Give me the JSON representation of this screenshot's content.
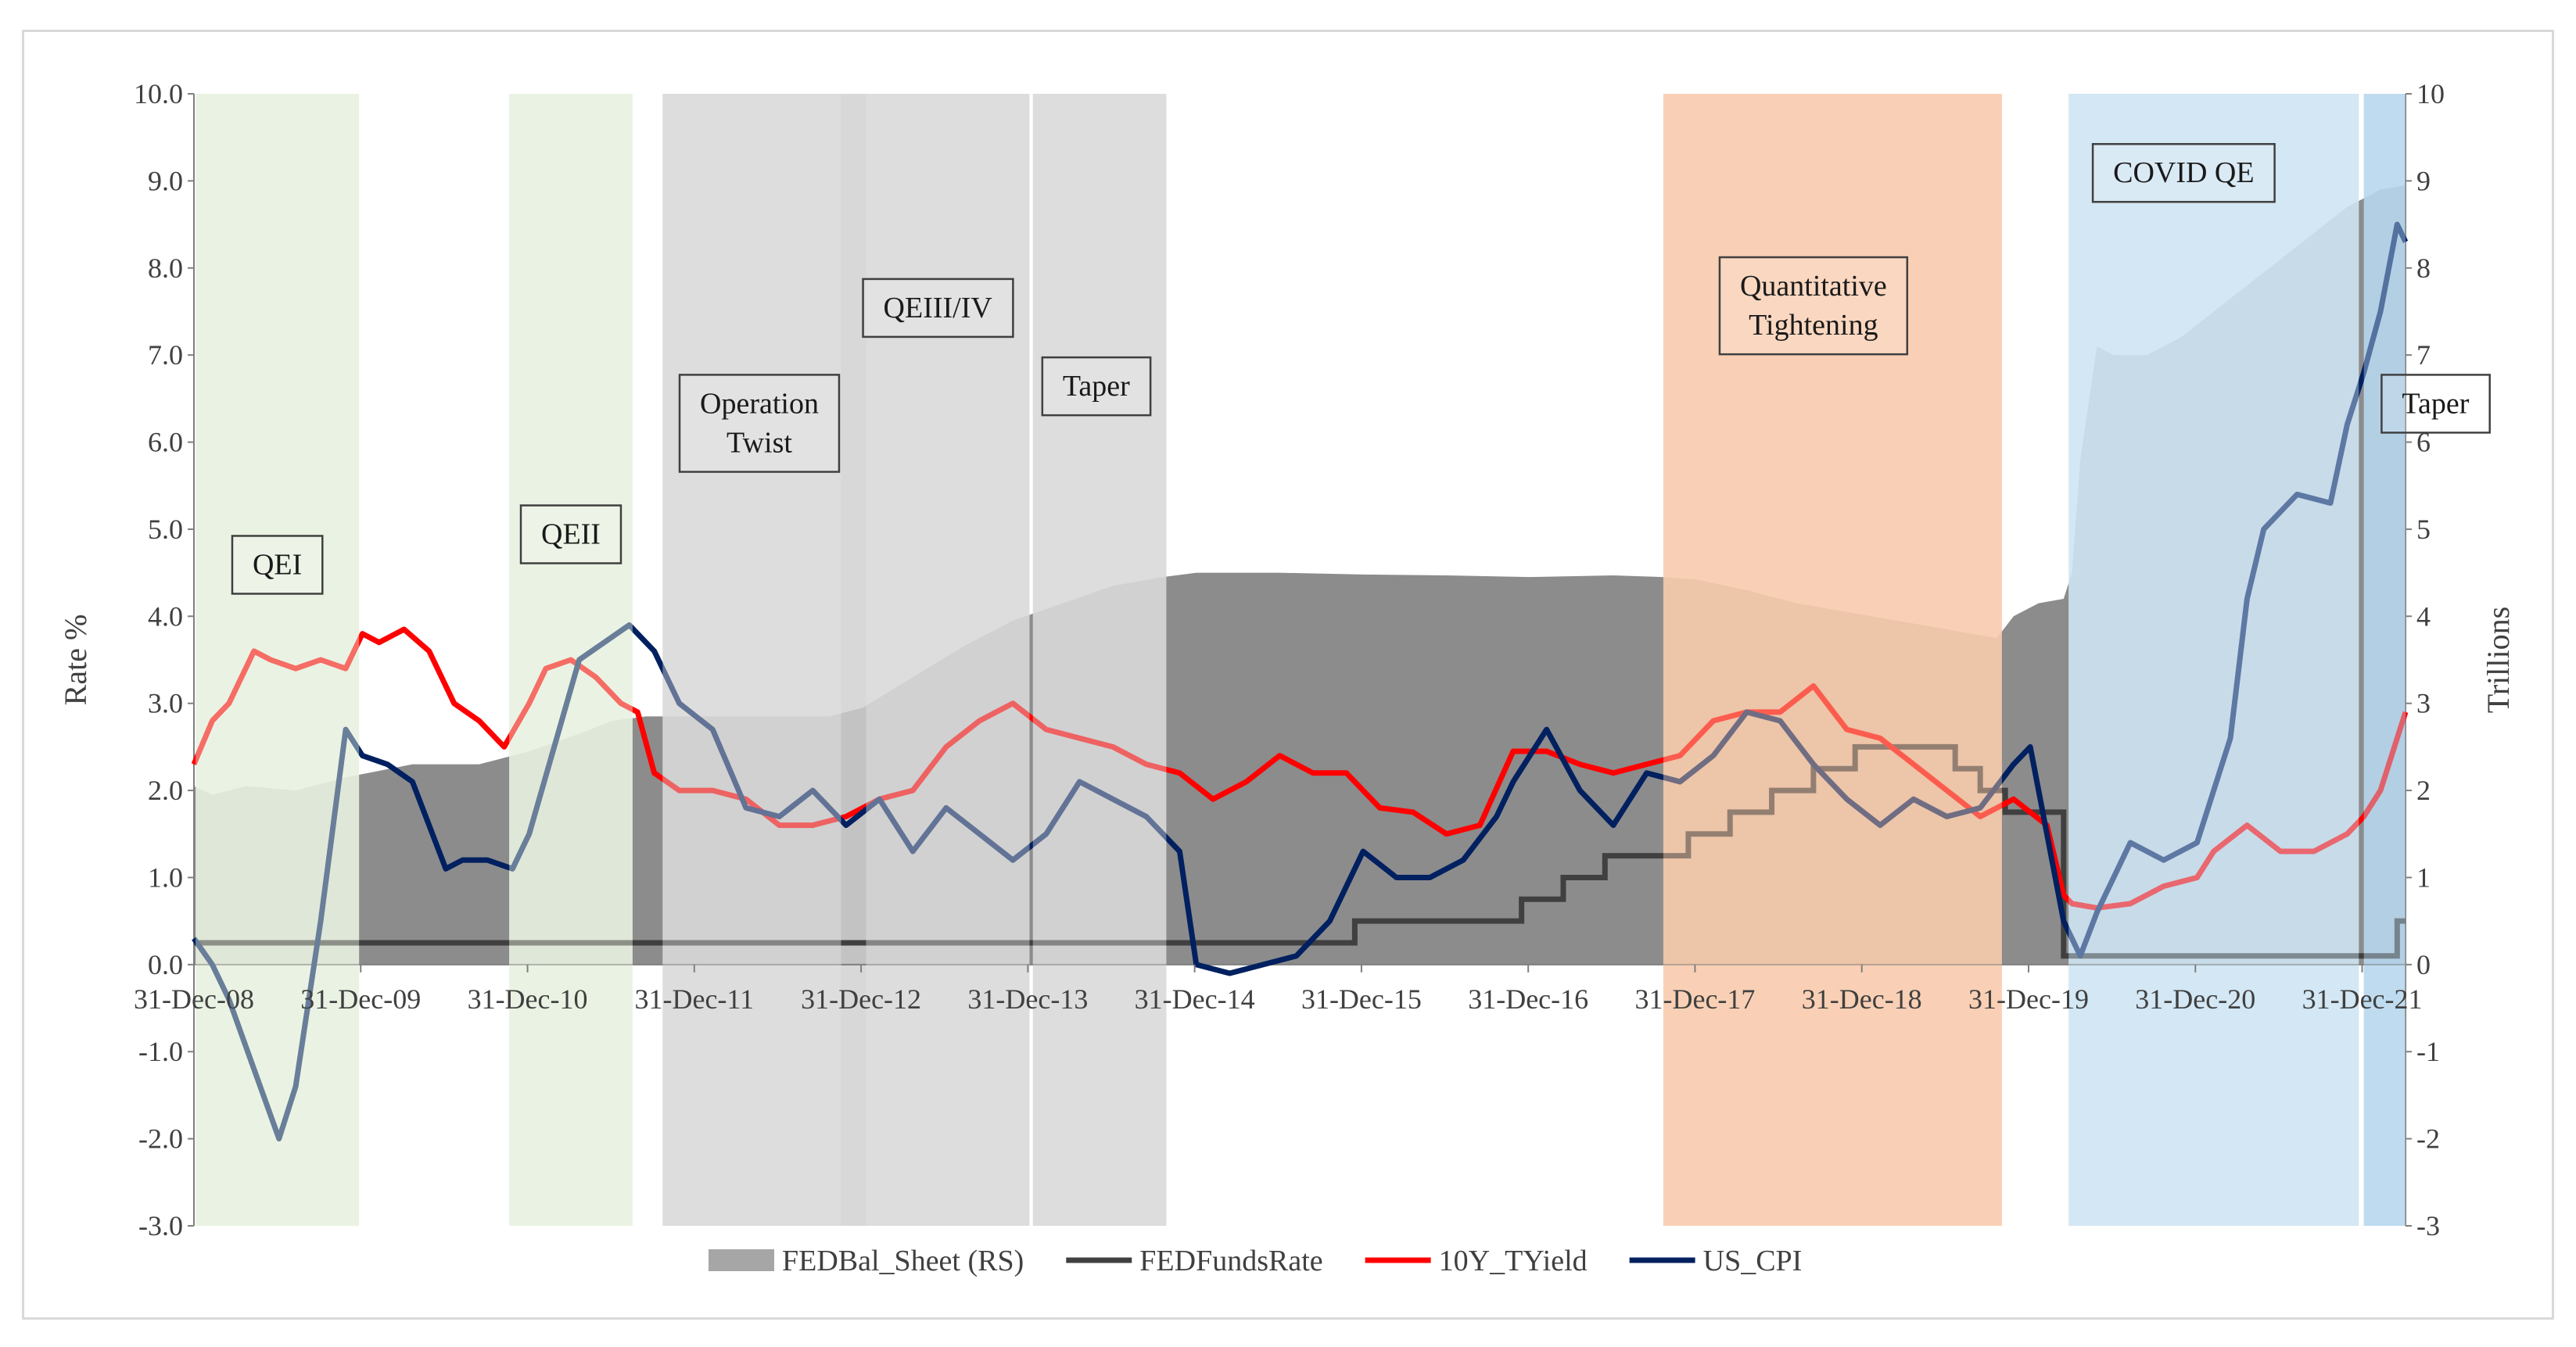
{
  "chart_data": {
    "type": "line",
    "title": "",
    "ylabel_left": "Rate %",
    "ylabel_right": "Trillions",
    "ylim_left": [
      -3,
      10
    ],
    "ylim_right": [
      -3,
      10
    ],
    "x_domain": [
      2008.99,
      2022.25
    ],
    "left_ticks": [
      "10.0",
      "9.0",
      "8.0",
      "7.0",
      "6.0",
      "5.0",
      "4.0",
      "3.0",
      "2.0",
      "1.0",
      "0.0",
      "-1.0",
      "-2.0",
      "-3.0"
    ],
    "right_ticks": [
      "10",
      "9",
      "8",
      "7",
      "6",
      "5",
      "4",
      "3",
      "2",
      "1",
      "0",
      "-1",
      "-2",
      "-3"
    ],
    "x_ticks": [
      {
        "label": "31-Dec-08",
        "x": 2008.99
      },
      {
        "label": "31-Dec-09",
        "x": 2009.99
      },
      {
        "label": "31-Dec-10",
        "x": 2010.99
      },
      {
        "label": "31-Dec-11",
        "x": 2011.99
      },
      {
        "label": "31-Dec-12",
        "x": 2012.99
      },
      {
        "label": "31-Dec-13",
        "x": 2013.99
      },
      {
        "label": "31-Dec-14",
        "x": 2014.99
      },
      {
        "label": "31-Dec-15",
        "x": 2015.99
      },
      {
        "label": "31-Dec-16",
        "x": 2016.99
      },
      {
        "label": "31-Dec-17",
        "x": 2017.99
      },
      {
        "label": "31-Dec-18",
        "x": 2018.99
      },
      {
        "label": "31-Dec-19",
        "x": 2019.99
      },
      {
        "label": "31-Dec-20",
        "x": 2020.99
      },
      {
        "label": "31-Dec-21",
        "x": 2021.99
      }
    ],
    "periods": [
      {
        "label": "QEI",
        "start": 2009.0,
        "end": 2009.98,
        "color": "#e8f2e1"
      },
      {
        "label": "QEII",
        "start": 2010.88,
        "end": 2011.62,
        "color": "#e8f2e1"
      },
      {
        "label": "Operation Twist",
        "start": 2011.8,
        "end": 2012.87,
        "color": "#d9d9d9"
      },
      {
        "label": "QEIII/IV",
        "start": 2012.87,
        "end": 2013.02,
        "color": "#cfcfcf"
      },
      {
        "label": "QEIII/IV",
        "start": 2013.02,
        "end": 2014.0,
        "color": "#d9d9d9"
      },
      {
        "label": "Taper",
        "start": 2014.02,
        "end": 2014.82,
        "color": "#d9d9d9"
      },
      {
        "label": "Quantitative Tightening",
        "start": 2017.8,
        "end": 2019.83,
        "color": "#f8cbad"
      },
      {
        "label": "COVID QE",
        "start": 2020.23,
        "end": 2021.97,
        "color": "#cfe4f3"
      },
      {
        "label": "Taper",
        "start": 2022.0,
        "end": 2022.25,
        "color": "#b8d7ee"
      }
    ],
    "period_labels": [
      {
        "text": "QEI",
        "x": 2009.49,
        "y": 4.6
      },
      {
        "text": "QEII",
        "x": 2011.25,
        "y": 4.95
      },
      {
        "text": "Operation",
        "x": 2012.38,
        "y": 6.45
      },
      {
        "text": "Twist",
        "x": 2012.38,
        "y": 6.0
      },
      {
        "text": "QEIII/IV",
        "x": 2013.45,
        "y": 7.55
      },
      {
        "text": "Taper",
        "x": 2014.4,
        "y": 6.65
      },
      {
        "text": "Quantitative",
        "x": 2018.7,
        "y": 7.8
      },
      {
        "text": "Tightening",
        "x": 2018.7,
        "y": 7.35
      },
      {
        "text": "COVID QE",
        "x": 2020.92,
        "y": 9.1
      },
      {
        "text": "Taper",
        "x": 2022.43,
        "y": 6.45
      }
    ],
    "series": [
      {
        "name": "FEDBal_Sheet (RS)",
        "type": "area",
        "color": "#a6a6a6",
        "x": [
          2008.99,
          2009.1,
          2009.3,
          2009.6,
          2009.9,
          2010.3,
          2010.7,
          2011.0,
          2011.3,
          2011.5,
          2011.7,
          2012.0,
          2012.5,
          2012.8,
          2013.0,
          2013.3,
          2013.6,
          2013.9,
          2014.2,
          2014.5,
          2014.8,
          2015.0,
          2015.5,
          2016.0,
          2016.5,
          2017.0,
          2017.5,
          2017.8,
          2018.0,
          2018.3,
          2018.6,
          2018.9,
          2019.2,
          2019.5,
          2019.7,
          2019.8,
          2019.9,
          2020.05,
          2020.2,
          2020.25,
          2020.3,
          2020.4,
          2020.5,
          2020.7,
          2020.9,
          2021.1,
          2021.3,
          2021.5,
          2021.7,
          2021.9,
          2022.1,
          2022.25
        ],
        "values": [
          2.05,
          1.95,
          2.05,
          2.0,
          2.15,
          2.3,
          2.3,
          2.45,
          2.65,
          2.8,
          2.85,
          2.85,
          2.85,
          2.85,
          2.95,
          3.3,
          3.65,
          3.95,
          4.15,
          4.35,
          4.45,
          4.5,
          4.5,
          4.48,
          4.47,
          4.45,
          4.47,
          4.45,
          4.42,
          4.3,
          4.15,
          4.05,
          3.95,
          3.85,
          3.78,
          3.75,
          4.0,
          4.15,
          4.2,
          4.5,
          5.8,
          7.1,
          7.0,
          7.0,
          7.2,
          7.5,
          7.8,
          8.1,
          8.4,
          8.7,
          8.9,
          8.95
        ]
      },
      {
        "name": "FEDFundsRate",
        "type": "line",
        "color": "#404040",
        "x": [
          2008.99,
          2015.95,
          2015.95,
          2016.95,
          2016.95,
          2017.2,
          2017.2,
          2017.45,
          2017.45,
          2017.95,
          2017.95,
          2018.2,
          2018.2,
          2018.45,
          2018.45,
          2018.7,
          2018.7,
          2018.95,
          2018.95,
          2019.55,
          2019.55,
          2019.7,
          2019.7,
          2019.85,
          2019.85,
          2020.2,
          2020.2,
          2022.2,
          2022.2,
          2022.25
        ],
        "values": [
          0.25,
          0.25,
          0.5,
          0.5,
          0.75,
          0.75,
          1.0,
          1.0,
          1.25,
          1.25,
          1.5,
          1.5,
          1.75,
          1.75,
          2.0,
          2.0,
          2.25,
          2.25,
          2.5,
          2.5,
          2.25,
          2.25,
          2.0,
          2.0,
          1.75,
          1.75,
          0.1,
          0.1,
          0.5,
          0.5
        ]
      },
      {
        "name": "10Y_TYield",
        "type": "line",
        "color": "#ff0000",
        "x": [
          2008.99,
          2009.1,
          2009.2,
          2009.35,
          2009.45,
          2009.6,
          2009.75,
          2009.9,
          2010.0,
          2010.1,
          2010.25,
          2010.4,
          2010.55,
          2010.7,
          2010.85,
          2011.0,
          2011.1,
          2011.25,
          2011.4,
          2011.55,
          2011.65,
          2011.75,
          2011.9,
          2012.1,
          2012.3,
          2012.5,
          2012.7,
          2012.9,
          2013.1,
          2013.3,
          2013.5,
          2013.7,
          2013.9,
          2014.1,
          2014.3,
          2014.5,
          2014.7,
          2014.9,
          2015.1,
          2015.3,
          2015.5,
          2015.7,
          2015.9,
          2016.1,
          2016.3,
          2016.5,
          2016.7,
          2016.9,
          2017.1,
          2017.3,
          2017.5,
          2017.7,
          2017.9,
          2018.1,
          2018.3,
          2018.5,
          2018.7,
          2018.9,
          2019.1,
          2019.3,
          2019.5,
          2019.7,
          2019.9,
          2020.1,
          2020.2,
          2020.25,
          2020.4,
          2020.6,
          2020.8,
          2021.0,
          2021.1,
          2021.3,
          2021.5,
          2021.7,
          2021.9,
          2022.0,
          2022.1,
          2022.25
        ],
        "values": [
          2.3,
          2.8,
          3.0,
          3.6,
          3.5,
          3.4,
          3.5,
          3.4,
          3.8,
          3.7,
          3.85,
          3.6,
          3.0,
          2.8,
          2.5,
          3.0,
          3.4,
          3.5,
          3.3,
          3.0,
          2.9,
          2.2,
          2.0,
          2.0,
          1.9,
          1.6,
          1.6,
          1.7,
          1.9,
          2.0,
          2.5,
          2.8,
          3.0,
          2.7,
          2.6,
          2.5,
          2.3,
          2.2,
          1.9,
          2.1,
          2.4,
          2.2,
          2.2,
          1.8,
          1.75,
          1.5,
          1.6,
          2.45,
          2.45,
          2.3,
          2.2,
          2.3,
          2.4,
          2.8,
          2.9,
          2.9,
          3.2,
          2.7,
          2.6,
          2.3,
          2.0,
          1.7,
          1.9,
          1.6,
          0.8,
          0.7,
          0.65,
          0.7,
          0.9,
          1.0,
          1.3,
          1.6,
          1.3,
          1.3,
          1.5,
          1.7,
          2.0,
          2.9
        ]
      },
      {
        "name": "US_CPI",
        "type": "line",
        "color": "#002060",
        "x": [
          2008.99,
          2009.1,
          2009.2,
          2009.35,
          2009.5,
          2009.6,
          2009.75,
          2009.9,
          2010.0,
          2010.15,
          2010.3,
          2010.5,
          2010.6,
          2010.75,
          2010.9,
          2011.0,
          2011.15,
          2011.3,
          2011.45,
          2011.6,
          2011.75,
          2011.9,
          2012.1,
          2012.3,
          2012.5,
          2012.7,
          2012.9,
          2013.1,
          2013.3,
          2013.5,
          2013.7,
          2013.9,
          2014.1,
          2014.3,
          2014.5,
          2014.7,
          2014.9,
          2015.0,
          2015.2,
          2015.4,
          2015.6,
          2015.8,
          2016.0,
          2016.2,
          2016.4,
          2016.6,
          2016.8,
          2016.9,
          2017.1,
          2017.3,
          2017.5,
          2017.7,
          2017.9,
          2018.1,
          2018.3,
          2018.5,
          2018.7,
          2018.9,
          2019.1,
          2019.3,
          2019.5,
          2019.7,
          2019.9,
          2020.0,
          2020.1,
          2020.2,
          2020.3,
          2020.4,
          2020.5,
          2020.6,
          2020.8,
          2021.0,
          2021.2,
          2021.3,
          2021.4,
          2021.6,
          2021.8,
          2021.9,
          2022.0,
          2022.1,
          2022.2,
          2022.25
        ],
        "values": [
          0.3,
          0.0,
          -0.4,
          -1.2,
          -2.0,
          -1.4,
          0.5,
          2.7,
          2.4,
          2.3,
          2.1,
          1.1,
          1.2,
          1.2,
          1.1,
          1.5,
          2.5,
          3.5,
          3.7,
          3.9,
          3.6,
          3.0,
          2.7,
          1.8,
          1.7,
          2.0,
          1.6,
          1.9,
          1.3,
          1.8,
          1.5,
          1.2,
          1.5,
          2.1,
          1.9,
          1.7,
          1.3,
          0.0,
          -0.1,
          0.0,
          0.1,
          0.5,
          1.3,
          1.0,
          1.0,
          1.2,
          1.7,
          2.1,
          2.7,
          2.0,
          1.6,
          2.2,
          2.1,
          2.4,
          2.9,
          2.8,
          2.3,
          1.9,
          1.6,
          1.9,
          1.7,
          1.8,
          2.3,
          2.5,
          1.5,
          0.5,
          0.1,
          0.6,
          1.0,
          1.4,
          1.2,
          1.4,
          2.6,
          4.2,
          5.0,
          5.4,
          5.3,
          6.2,
          6.8,
          7.5,
          8.5,
          8.3
        ]
      }
    ],
    "legend": [
      {
        "label": "FEDBal_Sheet (RS)",
        "color": "#a6a6a6",
        "kind": "area"
      },
      {
        "label": "FEDFundsRate",
        "color": "#404040",
        "kind": "line"
      },
      {
        "label": "10Y_TYield",
        "color": "#ff0000",
        "kind": "line"
      },
      {
        "label": "US_CPI",
        "color": "#002060",
        "kind": "line"
      }
    ]
  }
}
